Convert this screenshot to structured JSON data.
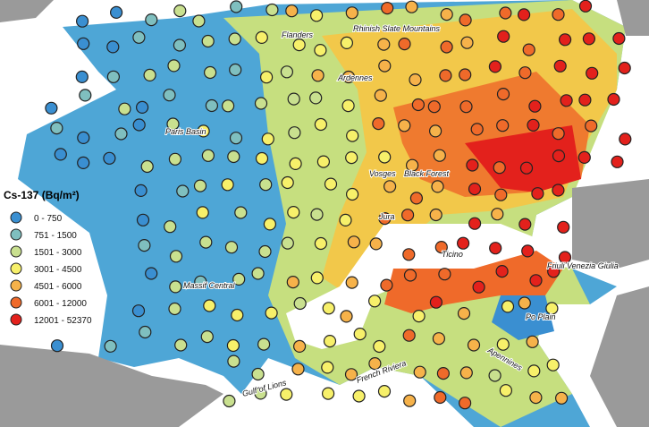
{
  "legend": {
    "title": "Cs-137 (Bq/m²)",
    "items": [
      {
        "label": "0 - 750",
        "color": "#3a8fd1"
      },
      {
        "label": "751 - 1500",
        "color": "#7fbfbf"
      },
      {
        "label": "1501 - 3000",
        "color": "#c9e08f"
      },
      {
        "label": "3001 - 4500",
        "color": "#f7f06a"
      },
      {
        "label": "4501 - 6000",
        "color": "#f6b24a"
      },
      {
        "label": "6001 - 12000",
        "color": "#ef6a2a"
      },
      {
        "label": "12001 - 52370",
        "color": "#e3211c"
      }
    ]
  },
  "places": [
    {
      "label": "Flanders"
    },
    {
      "label": "Rhinish Slate Mountains"
    },
    {
      "label": "Ardennes"
    },
    {
      "label": "Paris Basin"
    },
    {
      "label": "Vosges"
    },
    {
      "label": "Black Forest"
    },
    {
      "label": "Jura"
    },
    {
      "label": "Ticino"
    },
    {
      "label": "Friuli Venezia Giulia"
    },
    {
      "label": "Massif Central"
    },
    {
      "label": "Po Plain"
    },
    {
      "label": "Apennines"
    },
    {
      "label": "Gulf of Lions"
    },
    {
      "label": "French Riviera"
    }
  ]
}
